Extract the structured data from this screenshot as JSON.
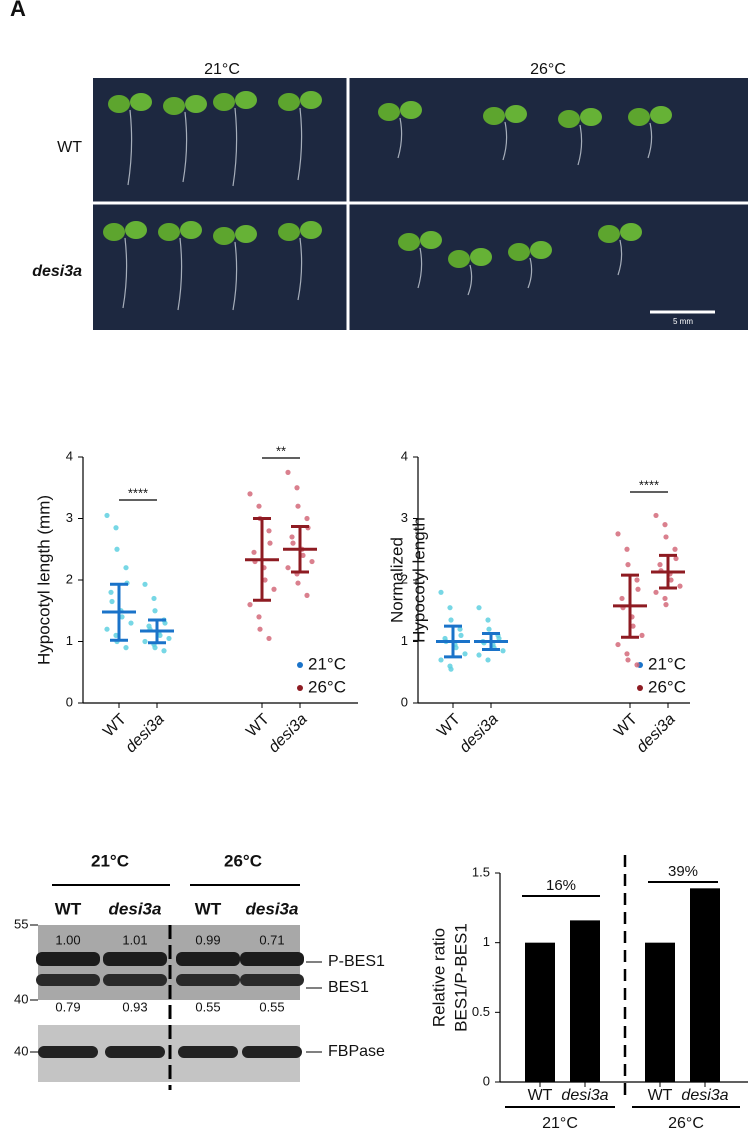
{
  "panel_letter": "A",
  "photo": {
    "columns": [
      "21°C",
      "26°C"
    ],
    "rows": [
      "WT",
      "desi3a"
    ],
    "scale_bar": "5 mm"
  },
  "chart_data": [
    {
      "type": "dot-plot",
      "ylabel": [
        "Hypocotyl length (mm)"
      ],
      "categories": [
        "WT",
        "desi3a",
        "WT",
        "desi3a"
      ],
      "ylim": [
        0,
        4
      ],
      "yticks": [
        0,
        1,
        2,
        3,
        4
      ],
      "annotations": [
        "****",
        "**"
      ],
      "series": [
        {
          "name": "21°C",
          "color": "#1a73c9",
          "point_color": "#5fd0e0",
          "means": [
            1.48,
            1.17,
            null,
            null
          ],
          "sd_low": [
            1.02,
            0.98,
            null,
            null
          ],
          "sd_high": [
            1.93,
            1.35,
            null,
            null
          ],
          "points": [
            [
              3.05,
              2.85,
              2.5,
              2.2,
              1.95,
              1.8,
              1.65,
              1.5,
              1.4,
              1.3,
              1.2,
              1.1,
              1.0,
              0.9
            ],
            [
              1.93,
              1.7,
              1.5,
              1.35,
              1.3,
              1.25,
              1.2,
              1.15,
              1.1,
              1.05,
              1.0,
              0.95,
              0.9,
              0.85
            ],
            null,
            null
          ]
        },
        {
          "name": "26°C",
          "color": "#8e1b22",
          "point_color": "#d46a7a",
          "means": [
            null,
            null,
            2.33,
            2.5
          ],
          "sd_low": [
            null,
            null,
            1.67,
            2.13
          ],
          "sd_high": [
            null,
            null,
            3.0,
            2.87
          ],
          "points": [
            null,
            null,
            [
              3.4,
              3.2,
              3.0,
              2.8,
              2.6,
              2.45,
              2.3,
              2.2,
              2.0,
              1.85,
              1.6,
              1.4,
              1.2,
              1.05
            ],
            [
              3.75,
              3.5,
              3.2,
              3.0,
              2.85,
              2.7,
              2.6,
              2.5,
              2.4,
              2.3,
              2.2,
              2.1,
              1.95,
              1.75
            ]
          ]
        }
      ]
    },
    {
      "type": "dot-plot",
      "ylabel": [
        "Normalized",
        "Hypocotyl length"
      ],
      "categories": [
        "WT",
        "desi3a",
        "WT",
        "desi3a"
      ],
      "ylim": [
        0,
        4
      ],
      "yticks": [
        0,
        1,
        2,
        3,
        4
      ],
      "annotations": [
        "****"
      ],
      "series": [
        {
          "name": "21°C",
          "color": "#1a73c9",
          "point_color": "#5fd0e0",
          "means": [
            1.0,
            1.0,
            null,
            null
          ],
          "sd_low": [
            0.75,
            0.87,
            null,
            null
          ],
          "sd_high": [
            1.25,
            1.13,
            null,
            null
          ],
          "points": [
            [
              1.8,
              1.55,
              1.35,
              1.2,
              1.1,
              1.05,
              1.0,
              0.95,
              0.9,
              0.8,
              0.7,
              0.6,
              0.55
            ],
            [
              1.55,
              1.35,
              1.2,
              1.1,
              1.05,
              1.0,
              0.98,
              0.95,
              0.9,
              0.85,
              0.78,
              0.7
            ],
            null,
            null
          ]
        },
        {
          "name": "26°C",
          "color": "#8e1b22",
          "point_color": "#d46a7a",
          "means": [
            null,
            null,
            1.58,
            2.13
          ],
          "sd_low": [
            null,
            null,
            1.07,
            1.87
          ],
          "sd_high": [
            null,
            null,
            2.08,
            2.4
          ],
          "points": [
            null,
            null,
            [
              2.75,
              2.5,
              2.25,
              2.0,
              1.85,
              1.7,
              1.55,
              1.4,
              1.25,
              1.1,
              0.95,
              0.8,
              0.7,
              0.62
            ],
            [
              3.05,
              2.9,
              2.7,
              2.5,
              2.35,
              2.25,
              2.15,
              2.1,
              2.0,
              1.9,
              1.8,
              1.7,
              1.6
            ]
          ]
        }
      ]
    },
    {
      "type": "bar",
      "ylabel": [
        "Relative ratio",
        "BES1/P-BES1"
      ],
      "categories": [
        "WT",
        "desi3a",
        "WT",
        "desi3a"
      ],
      "values": [
        1.0,
        1.16,
        1.0,
        1.39
      ],
      "color": "#000000",
      "ylim": [
        0,
        1.5
      ],
      "yticks": [
        0,
        0.5,
        1,
        1.5
      ],
      "annotations": [
        "16%",
        "39%"
      ],
      "groups": [
        "21°C",
        "26°C"
      ]
    }
  ],
  "blot": {
    "temperatures": [
      "21°C",
      "26°C"
    ],
    "lanes": [
      "WT",
      "desi3a",
      "WT",
      "desi3a"
    ],
    "top_ratios": [
      "1.00",
      "1.01",
      "0.99",
      "0.71"
    ],
    "bottom_ratios": [
      "0.79",
      "0.93",
      "0.55",
      "0.55"
    ],
    "markers": [
      "55",
      "40",
      "40"
    ],
    "bands": [
      "P-BES1",
      "BES1",
      "FBPase"
    ]
  }
}
